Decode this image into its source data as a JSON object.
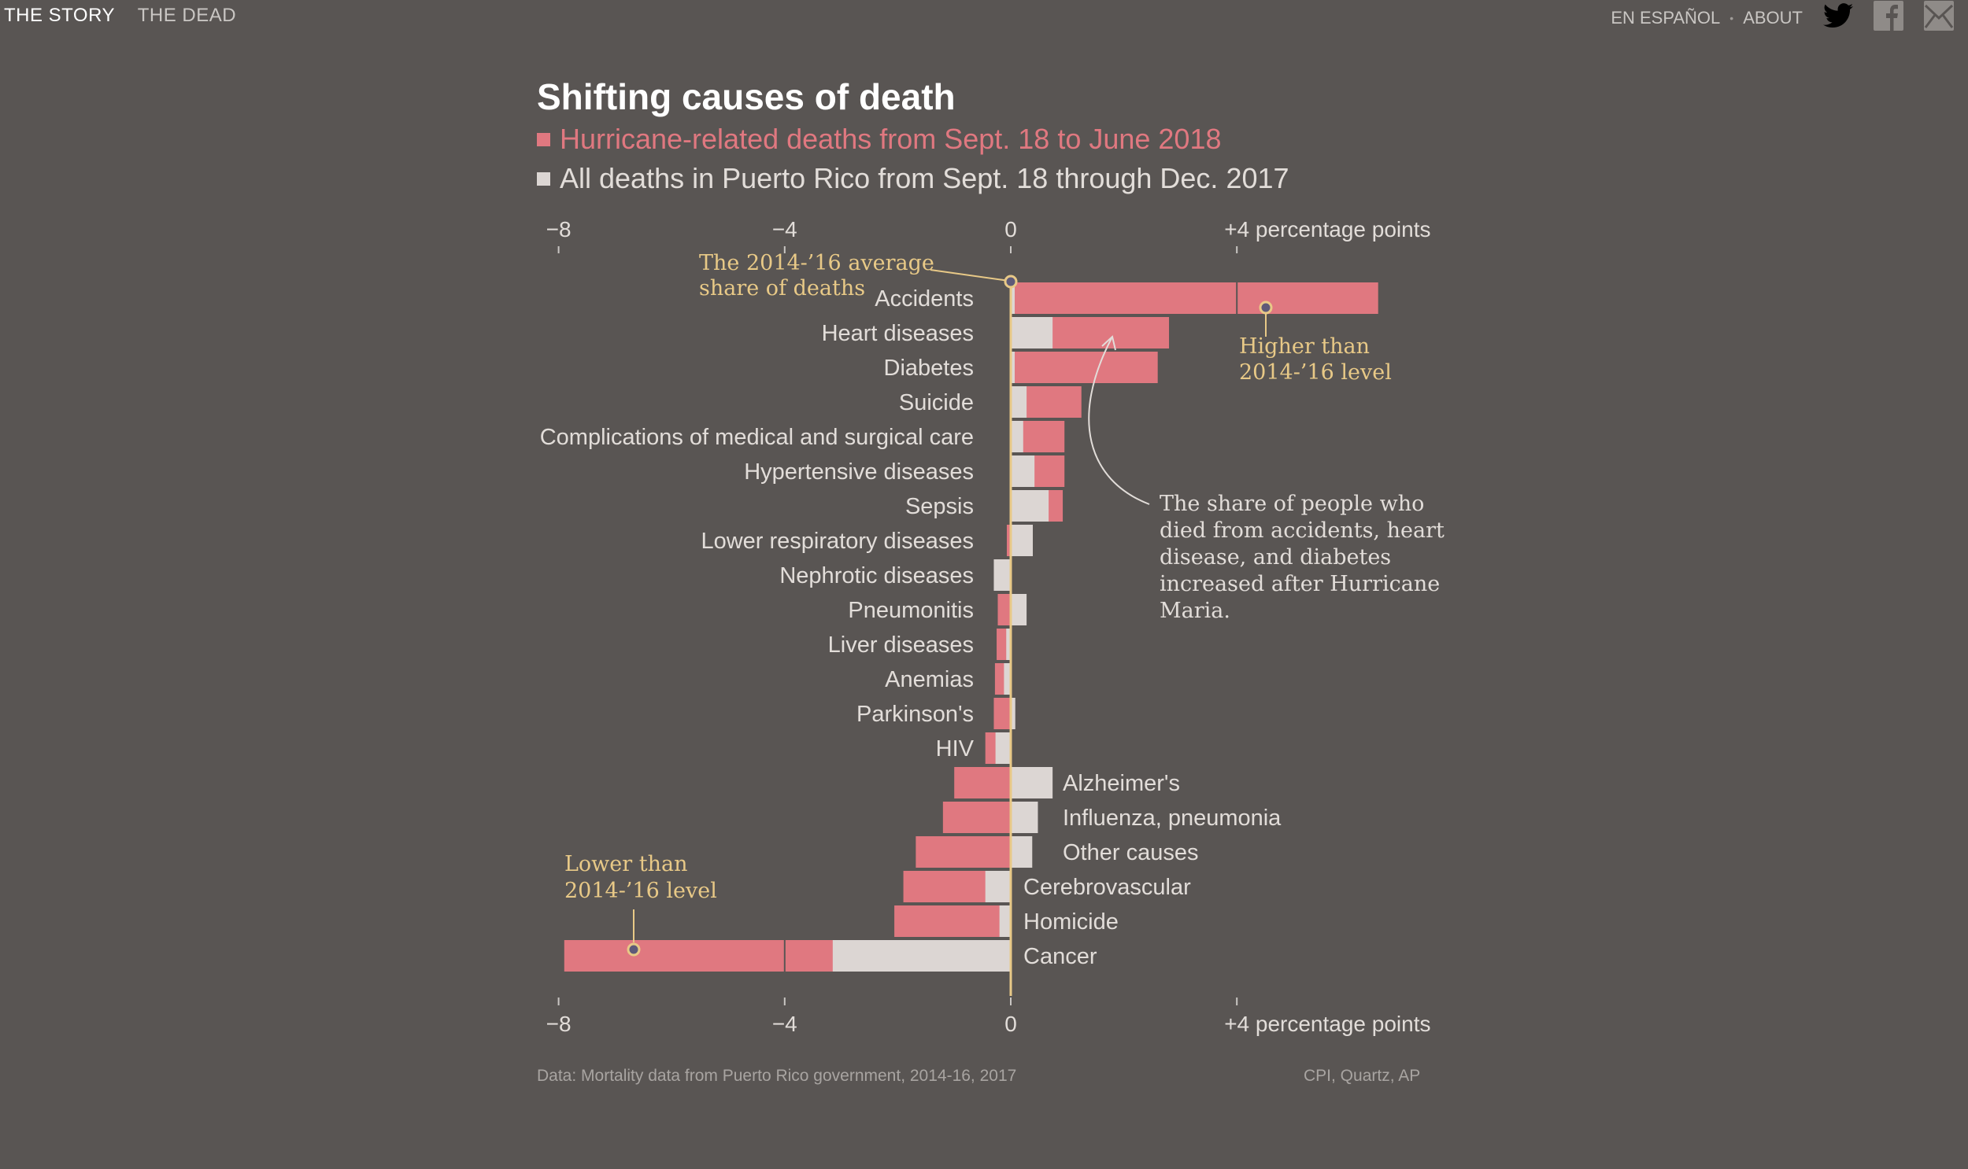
{
  "nav": {
    "left": [
      "THE STORY",
      "THE DEAD"
    ],
    "right": [
      "EN ESPAÑOL",
      "ABOUT"
    ],
    "separator": "•",
    "icons": [
      "twitter-icon",
      "facebook-icon",
      "mail-icon"
    ]
  },
  "colors": {
    "background": "#595553",
    "hurricane": "#e07880",
    "all_deaths": "#dcd6d3",
    "baseline": "#e8c987",
    "annotation": "#e8c987"
  },
  "chart_data": {
    "type": "bar",
    "title": "Shifting causes of death",
    "legend": [
      {
        "name": "Hurricane-related deaths from Sept. 18 to June 2018",
        "color": "#e07880"
      },
      {
        "name": "All deaths in Puerto Rico from Sept. 18 through Dec. 2017",
        "color": "#dcd6d3"
      }
    ],
    "xlabel": "percentage points",
    "xlim": [
      -8,
      6.5
    ],
    "ticks": [
      {
        "value": -8,
        "label": "−8"
      },
      {
        "value": -4,
        "label": "−4"
      },
      {
        "value": 0,
        "label": "0"
      },
      {
        "value": 4,
        "label": "+4 percentage points"
      }
    ],
    "categories": [
      "Accidents",
      "Heart diseases",
      "Diabetes",
      "Suicide",
      "Complications of medical and surgical care",
      "Hypertensive diseases",
      "Sepsis",
      "Lower respiratory diseases",
      "Nephrotic diseases",
      "Pneumonitis",
      "Liver diseases",
      "Anemias",
      "Parkinson's",
      "HIV",
      "Alzheimer's",
      "Influenza, pneumonia",
      "Other causes",
      "Cerebrovascular",
      "Homicide",
      "Cancer"
    ],
    "series": [
      {
        "name": "Hurricane-related deaths from Sept. 18 to June 2018",
        "values": [
          6.5,
          2.8,
          2.6,
          1.25,
          0.95,
          0.95,
          0.92,
          -0.07,
          -0.05,
          -0.23,
          -0.25,
          -0.28,
          -0.3,
          -0.45,
          -1.0,
          -1.2,
          -1.68,
          -1.9,
          -2.06,
          -7.9
        ]
      },
      {
        "name": "All deaths in Puerto Rico from Sept. 18 through Dec. 2017",
        "values": [
          0.07,
          0.74,
          0.07,
          0.28,
          0.22,
          0.42,
          0.67,
          0.39,
          -0.3,
          0.28,
          -0.08,
          -0.12,
          0.08,
          -0.27,
          0.74,
          0.48,
          0.38,
          -0.45,
          -0.2,
          -3.15
        ]
      }
    ],
    "annotations": {
      "baseline": [
        "The 2014-’16 average",
        "share of deaths"
      ],
      "higher": [
        "Higher than",
        "2014-’16 level"
      ],
      "lower": [
        "Lower than",
        "2014-’16 level"
      ],
      "note": [
        "The share of people who",
        "died from accidents, heart",
        "disease, and diabetes",
        "increased after Hurricane",
        "Maria."
      ]
    }
  },
  "footer": {
    "source": "Data: Mortality data from Puerto Rico government, 2014-16, 2017",
    "credit": "CPI, Quartz, AP"
  }
}
